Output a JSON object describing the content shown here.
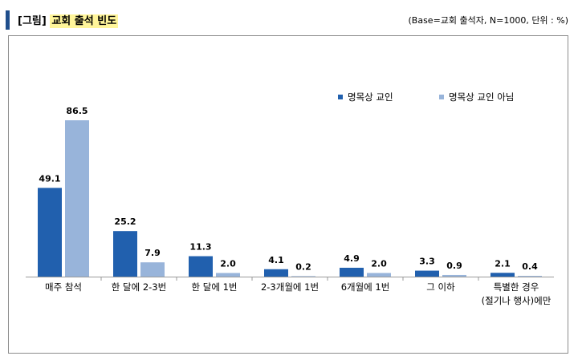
{
  "header": {
    "bracket": "[그림]",
    "title": "교회 출석 빈도",
    "base_note": "(Base=교회 출석자, N=1000, 단위 : %)"
  },
  "colors": {
    "series1": "#2160ae",
    "series2": "#98b4da",
    "accent": "#1f4e8c",
    "highlight": "#fff59a"
  },
  "chart_data": {
    "type": "bar",
    "title": "교회 출석 빈도",
    "xlabel": "",
    "ylabel": "",
    "ylim": [
      0,
      100
    ],
    "grid": false,
    "legend_position": "top-right",
    "categories": [
      [
        "매주 참석"
      ],
      [
        "한 달에 2-3번"
      ],
      [
        "한 달에 1번"
      ],
      [
        "2-3개월에 1번"
      ],
      [
        "6개월에 1번"
      ],
      [
        "그 이하"
      ],
      [
        "특별한 경우",
        "(절기나 행사)에만"
      ]
    ],
    "series": [
      {
        "name": "명목상 교인",
        "values": [
          49.1,
          25.2,
          11.3,
          4.1,
          4.9,
          3.3,
          2.1
        ]
      },
      {
        "name": "명목상 교인 아님",
        "values": [
          86.5,
          7.9,
          2.0,
          0.2,
          2.0,
          0.9,
          0.4
        ]
      }
    ]
  }
}
